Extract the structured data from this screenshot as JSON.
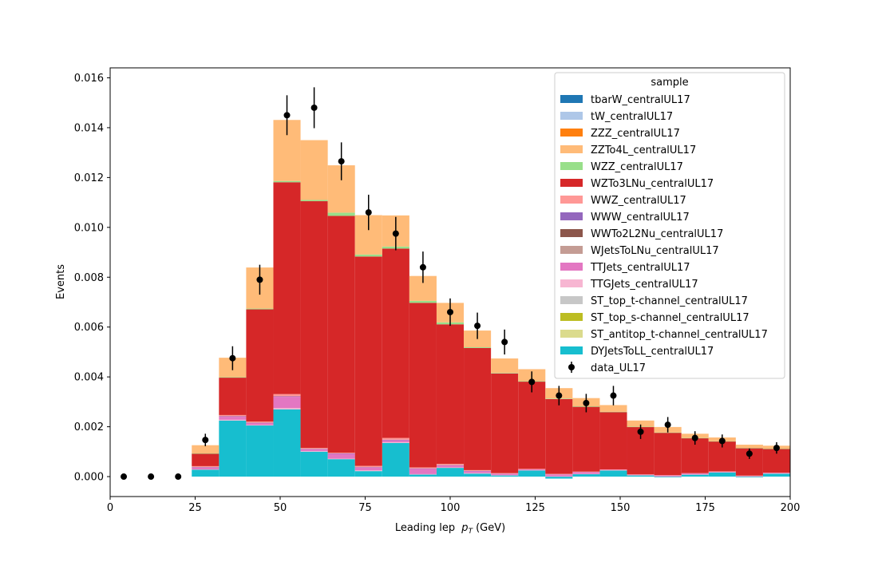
{
  "chart_data": {
    "type": "bar",
    "stacked": true,
    "title": "",
    "xlabel": "Leading lep",
    "xlabel_sub": "T",
    "xlabel_unit": "(GeV)",
    "xlabel_p": "p",
    "ylabel": "Events",
    "xlim": [
      0,
      200
    ],
    "ylim": [
      -0.0008,
      0.0164
    ],
    "xticks": [
      0,
      25,
      50,
      75,
      100,
      125,
      150,
      175,
      200
    ],
    "yticks": [
      0.0,
      0.002,
      0.004,
      0.006,
      0.008,
      0.01,
      0.012,
      0.014,
      0.016
    ],
    "ytick_labels": [
      "0.000",
      "0.002",
      "0.004",
      "0.006",
      "0.008",
      "0.010",
      "0.012",
      "0.014",
      "0.016"
    ],
    "grid": false,
    "legend_title": "sample",
    "legend_position": "top-right",
    "bin_edges": [
      24,
      32,
      40,
      48,
      56,
      64,
      72,
      80,
      88,
      96,
      104,
      112,
      120,
      128,
      136,
      144,
      152,
      160,
      168,
      176,
      184,
      192,
      200
    ],
    "series": [
      {
        "name": "tbarW_centralUL17",
        "color": "#1f77b4",
        "values": [
          0,
          0,
          0,
          0,
          0,
          0,
          0,
          0,
          0,
          0,
          0,
          0,
          0,
          0,
          0,
          0,
          0,
          0,
          0,
          0,
          0,
          0
        ]
      },
      {
        "name": "tW_centralUL17",
        "color": "#aec7e8",
        "values": [
          0,
          0,
          0,
          0,
          0,
          0,
          0,
          0,
          0,
          0,
          0,
          0,
          0,
          0,
          0,
          0,
          0,
          0,
          0,
          0,
          0,
          0
        ]
      },
      {
        "name": "ZZZ_centralUL17",
        "color": "#ff7f0e",
        "values": [
          0,
          0,
          0,
          0,
          0,
          0,
          0,
          0,
          0,
          0,
          0,
          0,
          0,
          0,
          0,
          0,
          0,
          0,
          0,
          0,
          0,
          0
        ]
      },
      {
        "name": "ZZTo4L_centralUL17",
        "color": "#ffbb78",
        "values": [
          0.00033,
          0.00078,
          0.00165,
          0.00245,
          0.0024,
          0.0019,
          0.00158,
          0.00125,
          0.001,
          0.00078,
          0.00067,
          0.00058,
          0.00048,
          0.00042,
          0.00033,
          0.00027,
          0.00025,
          0.00022,
          0.00017,
          0.00015,
          0.00013,
          0.00012
        ]
      },
      {
        "name": "WZZ_centralUL17",
        "color": "#98df8a",
        "values": [
          1e-05,
          2e-05,
          3e-05,
          5e-05,
          5e-05,
          0.00013,
          8e-05,
          8e-05,
          8e-05,
          8e-05,
          3e-05,
          2e-05,
          2e-05,
          2e-05,
          2e-05,
          1e-05,
          1e-05,
          1e-05,
          1e-05,
          1e-05,
          1e-05,
          1e-05
        ]
      },
      {
        "name": "WZTo3LNu_centralUL17",
        "color": "#d62728",
        "values": [
          0.0005,
          0.0015,
          0.0045,
          0.0085,
          0.0099,
          0.0095,
          0.0084,
          0.0076,
          0.0066,
          0.0056,
          0.0049,
          0.004,
          0.0035,
          0.003,
          0.0026,
          0.0023,
          0.0019,
          0.0017,
          0.0014,
          0.0012,
          0.0011,
          0.00095
        ]
      },
      {
        "name": "WWZ_centralUL17",
        "color": "#ff9896",
        "values": [
          4e-05,
          5e-05,
          5e-05,
          9e-05,
          4e-05,
          3e-05,
          5e-05,
          7e-05,
          4e-05,
          5e-05,
          3e-05,
          2e-05,
          2e-05,
          2e-05,
          1e-05,
          1e-05,
          1e-05,
          1e-05,
          1e-05,
          1e-05,
          1e-05,
          1e-05
        ]
      },
      {
        "name": "WWW_centralUL17",
        "color": "#9467bd",
        "values": [
          1e-05,
          2e-05,
          1e-05,
          2e-05,
          1e-05,
          1e-05,
          1e-05,
          2e-05,
          1e-05,
          1e-05,
          1e-05,
          0.0,
          0.0,
          0.0,
          0.0,
          0.0,
          0.0,
          0.0,
          0.0,
          0.0,
          0.0,
          0.0
        ]
      },
      {
        "name": "WWTo2L2Nu_centralUL17",
        "color": "#8c564b",
        "values": [
          0,
          0,
          0,
          0,
          0,
          0,
          0,
          0,
          0,
          0,
          0,
          0,
          0,
          0,
          0,
          0,
          0,
          0,
          0,
          0,
          0,
          0
        ]
      },
      {
        "name": "WJetsToLNu_centralUL17",
        "color": "#c49c94",
        "values": [
          0,
          0,
          0,
          0,
          0,
          0,
          0,
          0,
          0,
          0,
          0,
          0,
          0,
          0,
          0,
          0,
          0,
          0,
          0,
          0,
          0,
          0
        ]
      },
      {
        "name": "TTJets_centralUL17",
        "color": "#e377c2",
        "values": [
          8e-05,
          0.00012,
          8e-05,
          0.00045,
          8e-05,
          0.0002,
          0.00012,
          8e-05,
          0.00022,
          8e-05,
          8e-05,
          6e-05,
          3e-05,
          8e-05,
          8e-05,
          2e-05,
          2e-05,
          4e-05,
          4e-05,
          2e-05,
          2e-05,
          2e-05
        ]
      },
      {
        "name": "TTGJets_centralUL17",
        "color": "#f7b6d2",
        "values": [
          1e-05,
          3e-05,
          2e-05,
          5e-05,
          2e-05,
          2e-05,
          3e-05,
          3e-05,
          2e-05,
          2e-05,
          2e-05,
          1e-05,
          1e-05,
          1e-05,
          1e-05,
          1e-05,
          1e-05,
          1e-05,
          1e-05,
          1e-05,
          1e-05,
          1e-05
        ]
      },
      {
        "name": "ST_top_t-channel_centralUL17",
        "color": "#c7c7c7",
        "values": [
          0,
          0,
          0,
          0,
          0,
          0,
          0,
          0,
          0,
          0,
          0,
          0,
          0,
          0,
          0,
          0,
          0,
          0,
          0,
          0,
          0,
          0
        ]
      },
      {
        "name": "ST_top_s-channel_centralUL17",
        "color": "#bcbd22",
        "values": [
          0,
          0,
          0,
          0,
          0,
          0,
          0,
          0,
          0,
          0,
          0,
          0,
          0,
          0,
          0,
          0,
          0,
          0,
          0,
          0,
          0,
          0
        ]
      },
      {
        "name": "ST_antitop_t-channel_centralUL17",
        "color": "#dbdb8d",
        "values": [
          0,
          0,
          0,
          0,
          0,
          0,
          0,
          0,
          0,
          0,
          0,
          0,
          0,
          0,
          0,
          0,
          0,
          0,
          0,
          0,
          0,
          0
        ]
      },
      {
        "name": "DYJetsToLL_centralUL17",
        "color": "#17becf",
        "values": [
          0.00028,
          0.00225,
          0.00205,
          0.0027,
          0.001,
          0.0007,
          0.00022,
          0.00135,
          8e-05,
          0.00035,
          0.00012,
          5e-05,
          0.00025,
          -8e-05,
          0.0001,
          0.00025,
          5e-05,
          -3e-05,
          8e-05,
          0.00017,
          -3e-05,
          0.00012
        ]
      }
    ],
    "data_series": {
      "name": "data_UL17",
      "color": "#000000",
      "x": [
        4,
        12,
        20,
        28,
        36,
        44,
        52,
        60,
        68,
        76,
        84,
        92,
        100,
        108,
        116,
        124,
        132,
        140,
        148,
        156,
        164,
        172,
        180,
        188,
        196
      ],
      "y": [
        0.0,
        0.0,
        0.0,
        0.00147,
        0.00475,
        0.0079,
        0.0145,
        0.0148,
        0.01265,
        0.0106,
        0.00975,
        0.0084,
        0.0066,
        0.00605,
        0.0054,
        0.0038,
        0.00325,
        0.00295,
        0.00325,
        0.0018,
        0.00208,
        0.00155,
        0.00143,
        0.00092,
        0.00115
      ],
      "yerr": [
        0.0,
        0.0,
        0.0,
        0.00025,
        0.00048,
        0.0006,
        0.0008,
        0.00082,
        0.00076,
        0.00071,
        0.00067,
        0.00063,
        0.00055,
        0.00053,
        0.0005,
        0.00042,
        0.00039,
        0.00037,
        0.00039,
        0.00029,
        0.00031,
        0.00027,
        0.00026,
        0.00021,
        0.00023
      ]
    }
  }
}
